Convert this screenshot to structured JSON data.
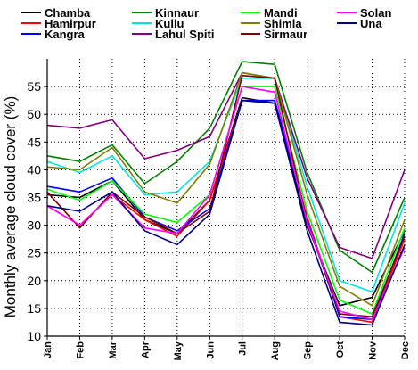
{
  "chart_data": {
    "type": "line",
    "title": "",
    "xlabel": "",
    "ylabel": "Monthly average cloud cover (%)",
    "ylim": [
      10,
      60
    ],
    "yticks": [
      10,
      15,
      20,
      25,
      30,
      35,
      40,
      45,
      50,
      55
    ],
    "grid": true,
    "legend_position": "top",
    "categories": [
      "Jan",
      "Feb",
      "Mar",
      "Apr",
      "May",
      "Jun",
      "Jul",
      "Aug",
      "Sep",
      "Oct",
      "Nov",
      "Dec"
    ],
    "series": [
      {
        "name": "Chamba",
        "color": "#000000",
        "values": [
          35.5,
          35.0,
          38.0,
          31.0,
          28.5,
          34.5,
          53.0,
          52.0,
          30.0,
          15.5,
          17.0,
          29.0
        ]
      },
      {
        "name": "Hamirpur",
        "color": "#ff0000",
        "values": [
          33.5,
          30.0,
          35.5,
          31.0,
          28.0,
          34.5,
          52.5,
          52.5,
          31.5,
          13.5,
          12.5,
          27.5
        ]
      },
      {
        "name": "Kangra",
        "color": "#0000ff",
        "values": [
          37.0,
          36.0,
          38.5,
          31.5,
          29.0,
          33.0,
          52.5,
          52.5,
          31.0,
          13.5,
          13.0,
          28.5
        ]
      },
      {
        "name": "Kinnaur",
        "color": "#008000",
        "values": [
          42.5,
          41.5,
          44.5,
          37.5,
          41.5,
          47.5,
          59.5,
          59.0,
          39.5,
          25.5,
          21.5,
          35.0
        ]
      },
      {
        "name": "Kullu",
        "color": "#00e5e5",
        "values": [
          41.5,
          39.5,
          42.5,
          35.5,
          36.0,
          41.5,
          56.5,
          56.5,
          37.0,
          20.0,
          18.0,
          34.0
        ]
      },
      {
        "name": "Lahul Spiti",
        "color": "#800080",
        "values": [
          48.0,
          47.5,
          49.0,
          42.0,
          43.5,
          46.0,
          57.5,
          56.5,
          38.5,
          26.0,
          24.0,
          40.0
        ]
      },
      {
        "name": "Mandi",
        "color": "#00ff00",
        "values": [
          36.5,
          34.5,
          38.0,
          32.0,
          30.5,
          35.5,
          55.0,
          55.0,
          32.5,
          16.5,
          14.0,
          29.5
        ]
      },
      {
        "name": "Shimla",
        "color": "#808000",
        "values": [
          40.5,
          40.0,
          44.0,
          36.0,
          34.0,
          41.0,
          57.5,
          56.5,
          35.5,
          19.0,
          15.5,
          31.0
        ]
      },
      {
        "name": "Sirmaur",
        "color": "#800000",
        "values": [
          36.0,
          29.5,
          36.0,
          31.5,
          28.5,
          32.5,
          57.0,
          56.5,
          30.5,
          14.0,
          13.5,
          28.0
        ]
      },
      {
        "name": "Solan",
        "color": "#ff00ff",
        "values": [
          33.5,
          30.0,
          35.5,
          29.5,
          28.5,
          35.5,
          55.0,
          54.0,
          30.5,
          14.5,
          13.0,
          26.0
        ]
      },
      {
        "name": "Una",
        "color": "#000080",
        "values": [
          33.5,
          32.5,
          36.0,
          29.0,
          26.5,
          32.0,
          52.5,
          52.0,
          29.0,
          12.5,
          12.0,
          26.5
        ]
      }
    ]
  }
}
